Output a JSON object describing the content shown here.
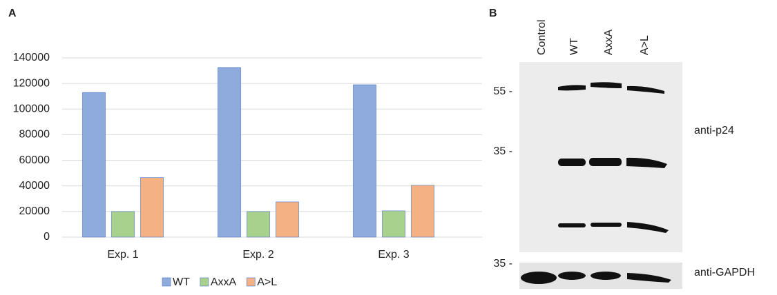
{
  "chart_data": {
    "type": "bar",
    "categories": [
      "Exp. 1",
      "Exp. 2",
      "Exp. 3"
    ],
    "series": [
      {
        "name": "WT",
        "color": "#8faadc",
        "values": [
          113000,
          132500,
          119000
        ]
      },
      {
        "name": "AxxA",
        "color": "#a9d18e",
        "values": [
          20000,
          20000,
          20500
        ]
      },
      {
        "name": "A>L",
        "color": "#f4b183",
        "values": [
          46500,
          27500,
          40500
        ]
      }
    ],
    "ylim": [
      0,
      140000
    ],
    "yticks": [
      0,
      20000,
      40000,
      60000,
      80000,
      100000,
      120000,
      140000
    ],
    "grid": true,
    "legend": "bottom"
  },
  "panel_labels": [
    "A",
    "B"
  ],
  "blot": {
    "lanes": [
      "Control",
      "WT",
      "AxxA",
      "A>L"
    ],
    "markers": [
      "55 -",
      "35 -",
      "35 -"
    ],
    "antibodies": [
      "anti-p24",
      "anti-GAPDH"
    ]
  }
}
